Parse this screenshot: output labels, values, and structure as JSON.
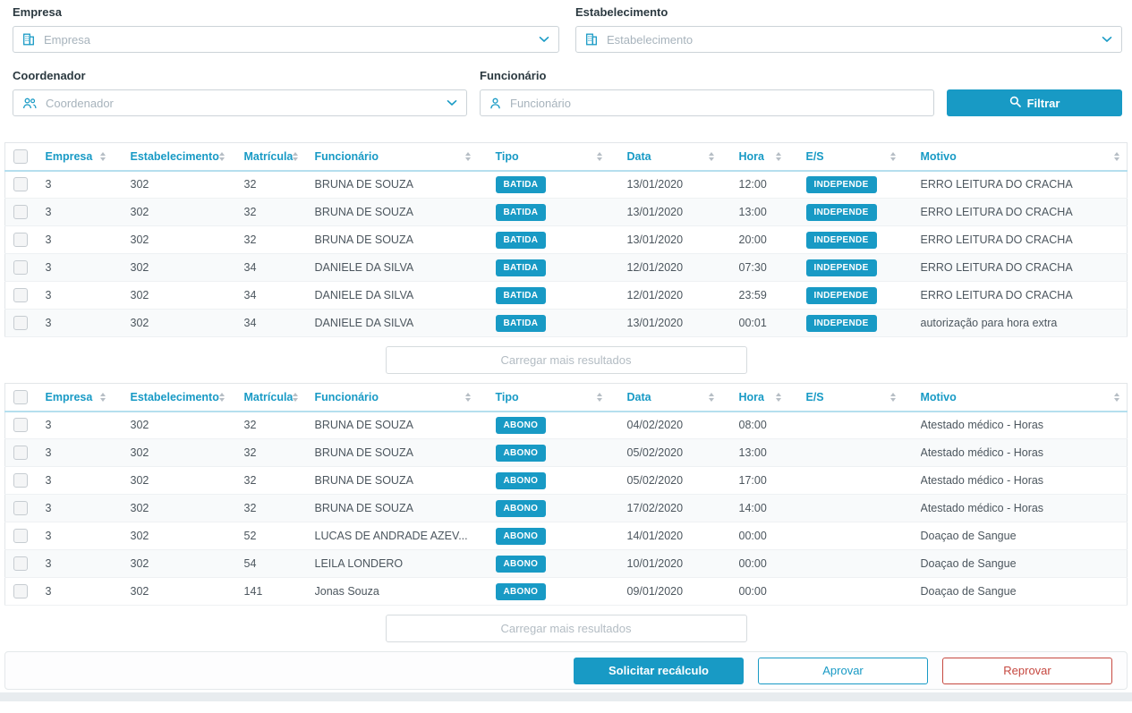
{
  "colors": {
    "accent": "#189ac5",
    "danger": "#c64840",
    "header_underline": "#b5dfee"
  },
  "icons": {
    "empresa_field": "building-icon",
    "estabelecimento_field": "building-icon",
    "coordenador_field": "people-icon",
    "funcionario_field": "person-icon",
    "filtrar_button": "search-icon",
    "combo_dropdown": "chevron-down-icon",
    "column_sort": "sort-arrows-icon"
  },
  "filters": {
    "empresa": {
      "label": "Empresa",
      "placeholder": "Empresa",
      "value": ""
    },
    "estabelecimento": {
      "label": "Estabelecimento",
      "placeholder": "Estabelecimento",
      "value": ""
    },
    "coordenador": {
      "label": "Coordenador",
      "placeholder": "Coordenador",
      "value": ""
    },
    "funcionario": {
      "label": "Funcionário",
      "placeholder": "Funcionário",
      "value": ""
    },
    "filtrar_label": "Filtrar"
  },
  "table_columns": [
    "Empresa",
    "Estabelecimento",
    "Matrícula",
    "Funcionário",
    "Tipo",
    "Data",
    "Hora",
    "E/S",
    "Motivo"
  ],
  "table1": {
    "load_more": "Carregar mais resultados",
    "rows": [
      [
        "3",
        "302",
        "32",
        "BRUNA DE SOUZA",
        "BATIDA",
        "13/01/2020",
        "12:00",
        "INDEPENDE",
        "ERRO LEITURA DO CRACHA"
      ],
      [
        "3",
        "302",
        "32",
        "BRUNA DE SOUZA",
        "BATIDA",
        "13/01/2020",
        "13:00",
        "INDEPENDE",
        "ERRO LEITURA DO CRACHA"
      ],
      [
        "3",
        "302",
        "32",
        "BRUNA DE SOUZA",
        "BATIDA",
        "13/01/2020",
        "20:00",
        "INDEPENDE",
        "ERRO LEITURA DO CRACHA"
      ],
      [
        "3",
        "302",
        "34",
        "DANIELE DA SILVA",
        "BATIDA",
        "12/01/2020",
        "07:30",
        "INDEPENDE",
        "ERRO LEITURA DO CRACHA"
      ],
      [
        "3",
        "302",
        "34",
        "DANIELE DA SILVA",
        "BATIDA",
        "12/01/2020",
        "23:59",
        "INDEPENDE",
        "ERRO LEITURA DO CRACHA"
      ],
      [
        "3",
        "302",
        "34",
        "DANIELE DA SILVA",
        "BATIDA",
        "13/01/2020",
        "00:01",
        "INDEPENDE",
        "autorização para hora extra"
      ]
    ]
  },
  "table2": {
    "load_more": "Carregar mais resultados",
    "rows": [
      [
        "3",
        "302",
        "32",
        "BRUNA DE SOUZA",
        "ABONO",
        "04/02/2020",
        "08:00",
        "",
        "Atestado médico - Horas"
      ],
      [
        "3",
        "302",
        "32",
        "BRUNA DE SOUZA",
        "ABONO",
        "05/02/2020",
        "13:00",
        "",
        "Atestado médico - Horas"
      ],
      [
        "3",
        "302",
        "32",
        "BRUNA DE SOUZA",
        "ABONO",
        "05/02/2020",
        "17:00",
        "",
        "Atestado médico - Horas"
      ],
      [
        "3",
        "302",
        "32",
        "BRUNA DE SOUZA",
        "ABONO",
        "17/02/2020",
        "14:00",
        "",
        "Atestado médico - Horas"
      ],
      [
        "3",
        "302",
        "52",
        "LUCAS DE ANDRADE AZEV...",
        "ABONO",
        "14/01/2020",
        "00:00",
        "",
        "Doaçao de Sangue"
      ],
      [
        "3",
        "302",
        "54",
        "LEILA LONDERO",
        "ABONO",
        "10/01/2020",
        "00:00",
        "",
        "Doaçao de Sangue"
      ],
      [
        "3",
        "302",
        "141",
        "Jonas Souza",
        "ABONO",
        "09/01/2020",
        "00:00",
        "",
        "Doaçao de Sangue"
      ]
    ]
  },
  "footer": {
    "solicitar": "Solicitar recálculo",
    "aprovar": "Aprovar",
    "reprovar": "Reprovar"
  }
}
